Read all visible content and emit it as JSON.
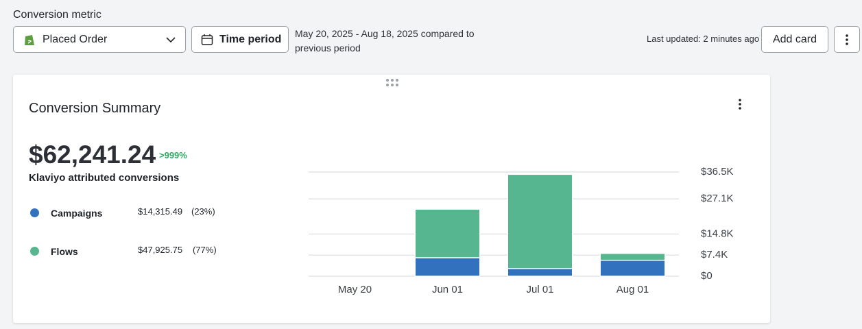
{
  "header": {
    "metric_label": "Conversion metric",
    "metric": "Placed Order",
    "time_button": "Time period",
    "date_range": "May 20, 2025 - Aug 18, 2025 compared to previous period",
    "last_updated": "Last updated: 2 minutes ago",
    "add_card": "Add card"
  },
  "card": {
    "title": "Conversion Summary",
    "total": "$62,241.24",
    "change": ">999%",
    "total_label": "Klaviyo attributed conversions",
    "breakdown": [
      {
        "amount": "$14,315.49",
        "share": "(23%)"
      },
      {
        "amount": "$47,925.75",
        "share": "(77%)"
      }
    ]
  },
  "chart_data": {
    "type": "stacked_bar",
    "categories": [
      "May 20",
      "Jun 01",
      "Jul 01",
      "Aug 01"
    ],
    "series": [
      {
        "name": "Campaigns",
        "color": "#3171be",
        "values": [
          0,
          6500,
          2700,
          5600
        ]
      },
      {
        "name": "Flows",
        "color": "#56b68f",
        "values": [
          0,
          17000,
          33000,
          2400
        ]
      }
    ],
    "ylim": [
      0,
      36500
    ],
    "yticks": [
      {
        "value": 0,
        "label": "$0"
      },
      {
        "value": 7400,
        "label": "$7.4K"
      },
      {
        "value": 14800,
        "label": "$14.8K"
      },
      {
        "value": 27100,
        "label": "$27.1K"
      },
      {
        "value": 36500,
        "label": "$36.5K"
      }
    ],
    "grid": true
  }
}
